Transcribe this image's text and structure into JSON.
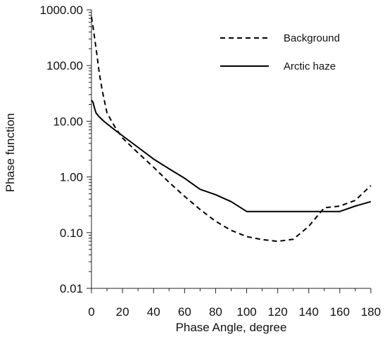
{
  "chart_data": {
    "type": "line",
    "xlabel": "Phase Angle, degree",
    "ylabel": "Phase function",
    "xlim": [
      0,
      180
    ],
    "ylim": [
      0.01,
      1000
    ],
    "y_scale": "log",
    "grid": false,
    "legend_position": "top-right",
    "x_ticks": [
      0,
      20,
      40,
      60,
      80,
      100,
      120,
      140,
      160,
      180
    ],
    "x_tick_labels": [
      "0",
      "20",
      "40",
      "60",
      "80",
      "100",
      "120",
      "140",
      "160",
      "180"
    ],
    "y_ticks": [
      0.01,
      0.1,
      1,
      10,
      100,
      1000
    ],
    "y_tick_labels": [
      "0.01",
      "0.10",
      "1.00",
      "10.00",
      "100.00",
      "1000.00"
    ],
    "series": [
      {
        "name": "Background",
        "style": "dashed",
        "color": "#000000",
        "x": [
          0,
          1,
          3,
          5,
          7,
          10,
          15,
          20,
          30,
          40,
          50,
          60,
          70,
          80,
          90,
          100,
          110,
          120,
          130,
          140,
          150,
          160,
          170,
          180
        ],
        "y": [
          750,
          500,
          200,
          75,
          35,
          14,
          8,
          5,
          2.7,
          1.5,
          0.8,
          0.45,
          0.26,
          0.16,
          0.11,
          0.085,
          0.075,
          0.07,
          0.076,
          0.13,
          0.28,
          0.3,
          0.38,
          0.7
        ]
      },
      {
        "name": "Arctic haze",
        "style": "solid",
        "color": "#000000",
        "x": [
          0,
          1,
          2,
          3,
          5,
          8,
          10,
          15,
          20,
          30,
          40,
          50,
          60,
          70,
          80,
          90,
          100,
          110,
          120,
          130,
          140,
          150,
          160,
          170,
          180
        ],
        "y": [
          24,
          22,
          17,
          14,
          12,
          10,
          9,
          7,
          5.5,
          3.4,
          2.1,
          1.4,
          0.95,
          0.6,
          0.48,
          0.36,
          0.24,
          0.24,
          0.24,
          0.24,
          0.24,
          0.24,
          0.24,
          0.3,
          0.36
        ]
      }
    ]
  }
}
